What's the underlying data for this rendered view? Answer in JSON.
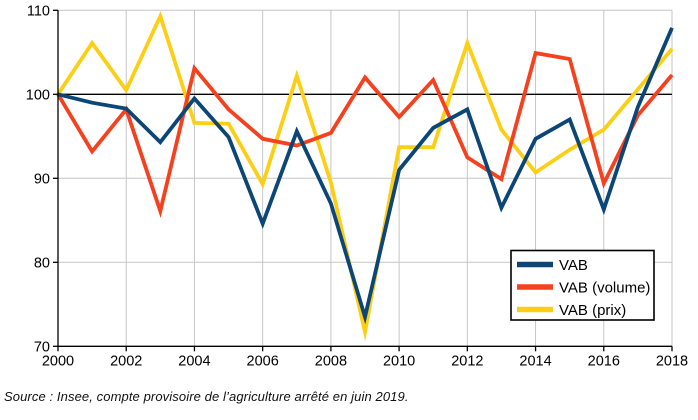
{
  "chart_data": {
    "type": "line",
    "x": [
      2000,
      2001,
      2002,
      2003,
      2004,
      2005,
      2006,
      2007,
      2008,
      2009,
      2010,
      2011,
      2012,
      2013,
      2014,
      2015,
      2016,
      2017,
      2018
    ],
    "series": [
      {
        "name": "VAB",
        "color": "#0B4677",
        "values": [
          100,
          99.0,
          98.3,
          94.3,
          99.5,
          94.9,
          84.6,
          95.6,
          87.0,
          73.5,
          91.0,
          96.0,
          98.2,
          86.5,
          94.7,
          97.0,
          86.3,
          98.5,
          107.9
        ]
      },
      {
        "name": "VAB (volume)",
        "color": "#F5411E",
        "values": [
          100,
          93.2,
          98.2,
          86.1,
          103.1,
          98.2,
          94.7,
          93.9,
          95.4,
          102.0,
          97.3,
          101.7,
          92.5,
          89.9,
          104.9,
          104.2,
          89.4,
          97.5,
          102.3
        ]
      },
      {
        "name": "VAB (prix)",
        "color": "#FCCF14",
        "values": [
          100,
          106.1,
          100.5,
          109.3,
          96.6,
          96.5,
          89.3,
          102.2,
          89.5,
          71.7,
          93.7,
          93.7,
          106.1,
          95.8,
          90.7,
          93.4,
          95.8,
          100.6,
          105.4
        ]
      }
    ],
    "title": "",
    "xlabel": "",
    "ylabel": "",
    "ylim": [
      70,
      110
    ],
    "yticks": [
      70,
      80,
      90,
      100,
      110
    ],
    "xticks": [
      2000,
      2002,
      2004,
      2006,
      2008,
      2010,
      2012,
      2014,
      2016,
      2018
    ],
    "reference_line": 100,
    "grid": "on",
    "legend_position": "inside-bottom-right"
  },
  "legend": {
    "items": [
      {
        "label": "VAB"
      },
      {
        "label": "VAB (volume)"
      },
      {
        "label": "VAB (prix)"
      }
    ]
  },
  "source_note": "Source : Insee, compte provisoire de l’agriculture arrêté en juin 2019.",
  "colors": {
    "background": "#FFFFFF",
    "grid": "#C6C6C6",
    "axis": "#000000",
    "reference_line": "#000000",
    "legend_border": "#000000",
    "text": "#000000"
  }
}
